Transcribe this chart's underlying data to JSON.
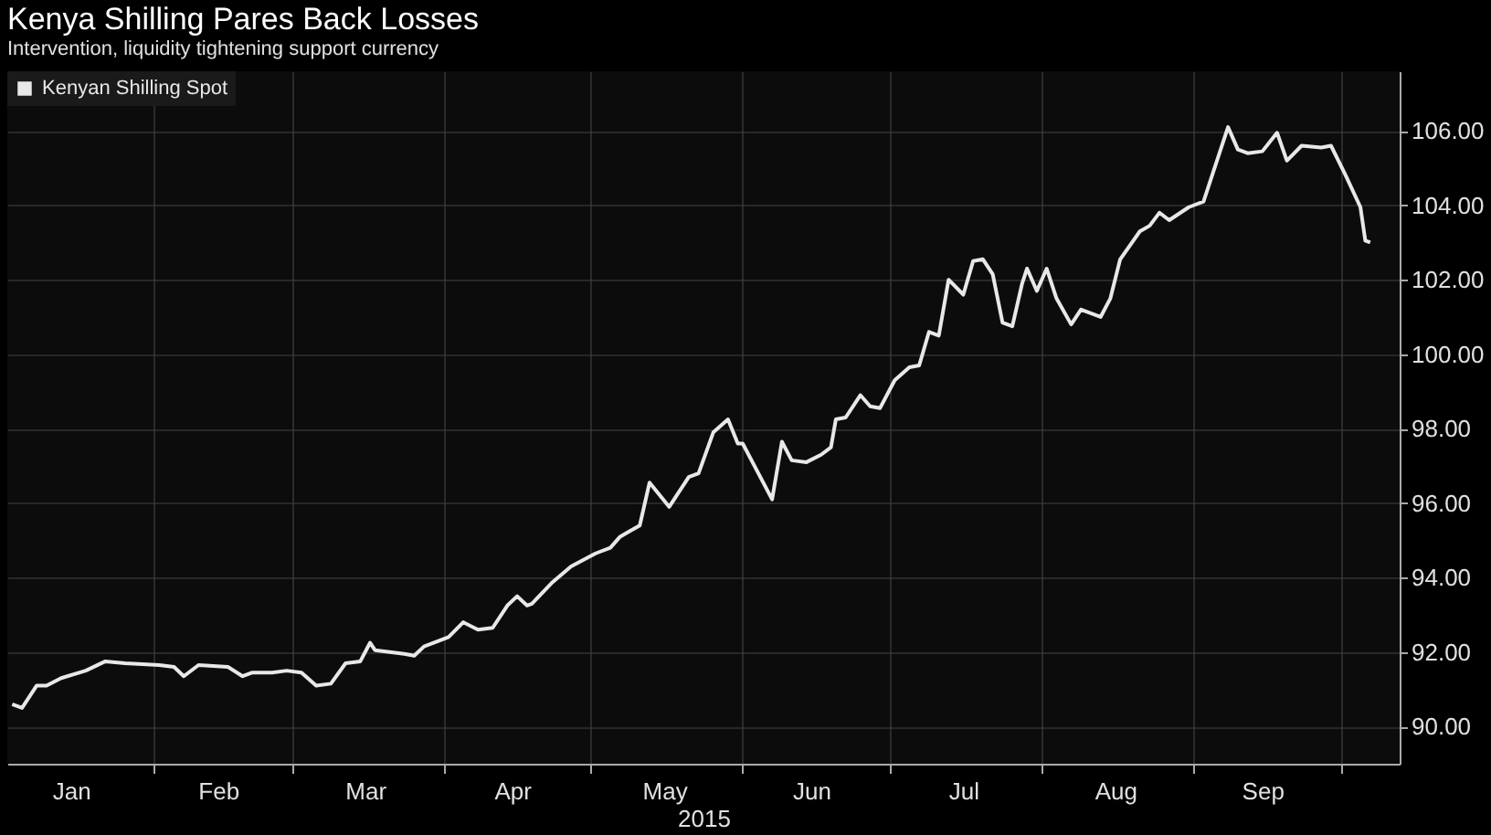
{
  "chart_data": {
    "type": "line",
    "title": "Kenya Shilling Pares Back Losses",
    "subtitle": "Intervention, liquidity tightening support currency",
    "xlabel": "2015",
    "x": [
      "2015-01-03",
      "2015-01-05",
      "2015-01-08",
      "2015-01-10",
      "2015-01-13",
      "2015-01-18",
      "2015-01-22",
      "2015-01-26",
      "2015-02-02",
      "2015-02-05",
      "2015-02-07",
      "2015-02-10",
      "2015-02-16",
      "2015-02-19",
      "2015-02-21",
      "2015-02-25",
      "2015-02-28",
      "2015-03-03",
      "2015-03-06",
      "2015-03-09",
      "2015-03-12",
      "2015-03-15",
      "2015-03-17",
      "2015-03-18",
      "2015-03-24",
      "2015-03-26",
      "2015-03-28",
      "2015-04-02",
      "2015-04-05",
      "2015-04-08",
      "2015-04-11",
      "2015-04-14",
      "2015-04-16",
      "2015-04-18",
      "2015-04-19",
      "2015-04-23",
      "2015-04-27",
      "2015-05-02",
      "2015-05-05",
      "2015-05-07",
      "2015-05-09",
      "2015-05-11",
      "2015-05-13",
      "2015-05-17",
      "2015-05-21",
      "2015-05-23",
      "2015-05-26",
      "2015-05-29",
      "2015-05-31",
      "2015-06-01",
      "2015-06-07",
      "2015-06-09",
      "2015-06-11",
      "2015-06-14",
      "2015-06-17",
      "2015-06-19",
      "2015-06-20",
      "2015-06-22",
      "2015-06-25",
      "2015-06-27",
      "2015-06-29",
      "2015-07-02",
      "2015-07-05",
      "2015-07-07",
      "2015-07-09",
      "2015-07-11",
      "2015-07-13",
      "2015-07-16",
      "2015-07-18",
      "2015-07-20",
      "2015-07-22",
      "2015-07-24",
      "2015-07-26",
      "2015-07-28",
      "2015-07-29",
      "2015-07-31",
      "2015-08-02",
      "2015-08-04",
      "2015-08-07",
      "2015-08-09",
      "2015-08-13",
      "2015-08-15",
      "2015-08-17",
      "2015-08-21",
      "2015-08-23",
      "2015-08-25",
      "2015-08-27",
      "2015-08-31",
      "2015-09-03",
      "2015-09-06",
      "2015-09-08",
      "2015-09-10",
      "2015-09-12",
      "2015-09-15",
      "2015-09-18",
      "2015-09-20",
      "2015-09-23",
      "2015-09-27",
      "2015-09-29",
      "2015-10-02",
      "2015-10-05",
      "2015-10-06",
      "2015-10-07"
    ],
    "series": [
      {
        "name": "Kenyan Shilling Spot",
        "color": "#e8e8e8",
        "values": [
          90.6,
          90.5,
          91.1,
          91.1,
          91.3,
          91.5,
          91.75,
          91.7,
          91.65,
          91.6,
          91.35,
          91.65,
          91.6,
          91.35,
          91.45,
          91.45,
          91.5,
          91.45,
          91.1,
          91.15,
          91.7,
          91.75,
          92.25,
          92.05,
          91.95,
          91.9,
          92.15,
          92.4,
          92.8,
          92.6,
          92.65,
          93.25,
          93.5,
          93.25,
          93.3,
          93.85,
          94.3,
          94.65,
          94.8,
          95.1,
          95.25,
          95.4,
          96.55,
          95.9,
          96.7,
          96.8,
          97.9,
          98.25,
          97.6,
          97.6,
          96.1,
          97.65,
          97.15,
          97.1,
          97.3,
          97.5,
          98.25,
          98.3,
          98.9,
          98.6,
          98.55,
          99.3,
          99.65,
          99.7,
          100.6,
          100.5,
          102.0,
          101.6,
          102.5,
          102.55,
          102.15,
          100.85,
          100.75,
          101.9,
          102.3,
          101.7,
          102.3,
          101.5,
          100.8,
          101.2,
          101.0,
          101.5,
          102.55,
          103.3,
          103.45,
          103.8,
          103.6,
          103.95,
          104.1,
          105.3,
          106.1,
          105.5,
          105.4,
          105.45,
          105.95,
          105.2,
          105.6,
          105.55,
          105.6,
          104.8,
          103.95,
          103.05,
          103.0
        ]
      }
    ],
    "xlim": [
      "2015-01-02",
      "2015-10-13"
    ],
    "xticks": [
      {
        "value": "2015-01-15",
        "label": "Jan"
      },
      {
        "value": "2015-02-01",
        "label": null
      },
      {
        "value": "2015-02-14",
        "label": "Feb"
      },
      {
        "value": "2015-03-01",
        "label": null
      },
      {
        "value": "2015-03-16",
        "label": "Mar"
      },
      {
        "value": "2015-04-01",
        "label": null
      },
      {
        "value": "2015-04-15",
        "label": "Apr"
      },
      {
        "value": "2015-05-01",
        "label": null
      },
      {
        "value": "2015-05-16",
        "label": "May"
      },
      {
        "value": "2015-06-01",
        "label": null
      },
      {
        "value": "2015-06-15",
        "label": "Jun"
      },
      {
        "value": "2015-07-01",
        "label": null
      },
      {
        "value": "2015-07-16",
        "label": "Jul"
      },
      {
        "value": "2015-08-01",
        "label": null
      },
      {
        "value": "2015-08-16",
        "label": "Aug"
      },
      {
        "value": "2015-09-01",
        "label": null
      },
      {
        "value": "2015-09-15",
        "label": "Sep"
      },
      {
        "value": "2015-10-01",
        "label": null
      }
    ],
    "ylim": [
      89.0,
      107.6
    ],
    "yticks": [
      {
        "value": 90,
        "label": "90.00"
      },
      {
        "value": 92,
        "label": "92.00"
      },
      {
        "value": 94,
        "label": "94.00"
      },
      {
        "value": 96,
        "label": "96.00"
      },
      {
        "value": 98,
        "label": "98.00"
      },
      {
        "value": 100,
        "label": "100.00"
      },
      {
        "value": 102,
        "label": "102.00"
      },
      {
        "value": 104,
        "label": "104.00"
      },
      {
        "value": 106,
        "label": "106.00"
      }
    ],
    "grid": true,
    "legend": "top left",
    "marker": "none",
    "line_style": "solid"
  }
}
